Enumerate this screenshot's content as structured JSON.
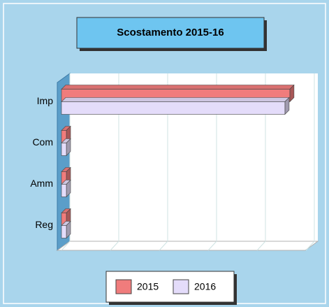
{
  "chart_data": {
    "type": "bar",
    "orientation": "horizontal",
    "title": "Scostamento 2015-16",
    "categories": [
      "Imp",
      "Com",
      "Amm",
      "Reg"
    ],
    "series": [
      {
        "name": "2015",
        "color": "#f07c7c",
        "values": [
          4.67,
          0.1,
          0.1,
          0.1
        ]
      },
      {
        "name": "2016",
        "color": "#e4dcfa",
        "values": [
          4.57,
          0.1,
          0.1,
          0.1
        ]
      }
    ],
    "xlim": [
      0,
      5
    ],
    "xticks": [
      0,
      1,
      2,
      3,
      4,
      5
    ],
    "grid": true
  }
}
